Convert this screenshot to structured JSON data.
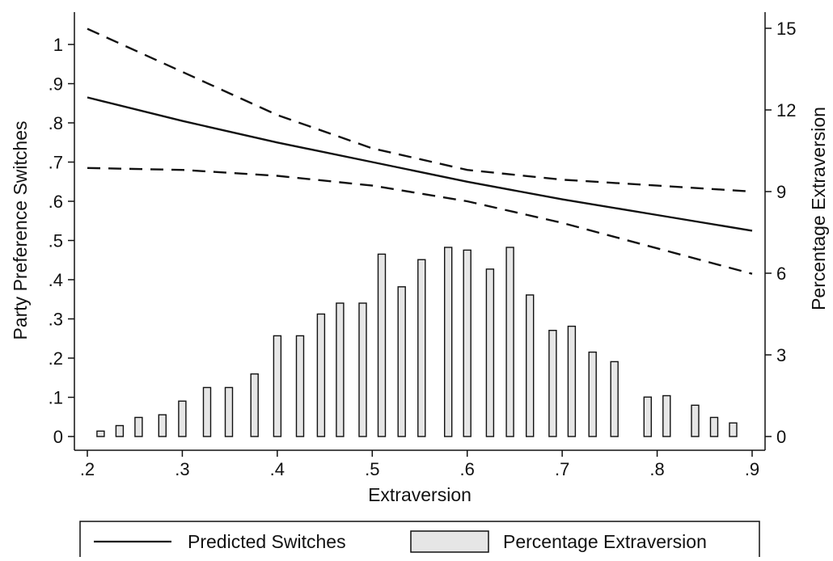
{
  "chart_data": {
    "type": "bar",
    "xlabel": "Extraversion",
    "ylabel": "Party Preference Switches",
    "y2label": "Percentage Extraversion",
    "xlim": [
      0.2,
      0.9
    ],
    "ylim": [
      0,
      1.05
    ],
    "y2lim": [
      0,
      15.3
    ],
    "xticks": [
      ".2",
      ".3",
      ".4",
      ".5",
      ".6",
      ".7",
      ".8",
      ".9"
    ],
    "xtick_values": [
      0.2,
      0.3,
      0.4,
      0.5,
      0.6,
      0.7,
      0.8,
      0.9
    ],
    "yticks": [
      "0",
      ".1",
      ".2",
      ".3",
      ".4",
      ".5",
      ".6",
      ".7",
      ".8",
      ".9",
      "1"
    ],
    "ytick_values": [
      0,
      0.1,
      0.2,
      0.3,
      0.4,
      0.5,
      0.6,
      0.7,
      0.8,
      0.9,
      1.0
    ],
    "y2ticks": [
      "0",
      "3",
      "6",
      "9",
      "12",
      "15"
    ],
    "y2tick_values": [
      0,
      3,
      6,
      9,
      12,
      15
    ],
    "grid": false,
    "legend_position": "bottom",
    "bars": {
      "name": "Percentage Extraversion",
      "axis": "right",
      "fill": "#e6e6e6",
      "x": [
        0.214,
        0.234,
        0.254,
        0.279,
        0.3,
        0.326,
        0.349,
        0.376,
        0.4,
        0.424,
        0.446,
        0.466,
        0.49,
        0.51,
        0.531,
        0.552,
        0.58,
        0.6,
        0.624,
        0.645,
        0.666,
        0.69,
        0.71,
        0.732,
        0.755,
        0.79,
        0.81,
        0.84,
        0.86,
        0.88
      ],
      "values": [
        0.2,
        0.4,
        0.7,
        0.8,
        1.3,
        1.8,
        1.8,
        2.3,
        3.7,
        3.7,
        4.5,
        4.9,
        4.9,
        6.7,
        5.5,
        6.5,
        6.95,
        6.85,
        6.15,
        6.95,
        5.2,
        3.9,
        4.05,
        3.1,
        2.75,
        1.45,
        1.5,
        1.15,
        0.7,
        0.5
      ]
    },
    "series": [
      {
        "name": "Predicted Switches",
        "axis": "left",
        "style": "solid",
        "x": [
          0.2,
          0.3,
          0.4,
          0.5,
          0.6,
          0.7,
          0.8,
          0.9
        ],
        "y": [
          0.865,
          0.805,
          0.75,
          0.7,
          0.65,
          0.605,
          0.565,
          0.525
        ]
      },
      {
        "name": "upper bound",
        "axis": "left",
        "style": "dashed",
        "x": [
          0.2,
          0.3,
          0.4,
          0.5,
          0.6,
          0.7,
          0.8,
          0.9
        ],
        "y": [
          1.04,
          0.93,
          0.82,
          0.735,
          0.68,
          0.655,
          0.64,
          0.625
        ]
      },
      {
        "name": "lower bound",
        "axis": "left",
        "style": "dashed",
        "x": [
          0.2,
          0.3,
          0.4,
          0.5,
          0.6,
          0.7,
          0.8,
          0.9
        ],
        "y": [
          0.685,
          0.68,
          0.665,
          0.64,
          0.6,
          0.545,
          0.48,
          0.415
        ]
      }
    ],
    "legend": [
      {
        "label": "Predicted Switches",
        "kind": "line"
      },
      {
        "label": "Percentage Extraversion",
        "kind": "bar"
      }
    ]
  }
}
